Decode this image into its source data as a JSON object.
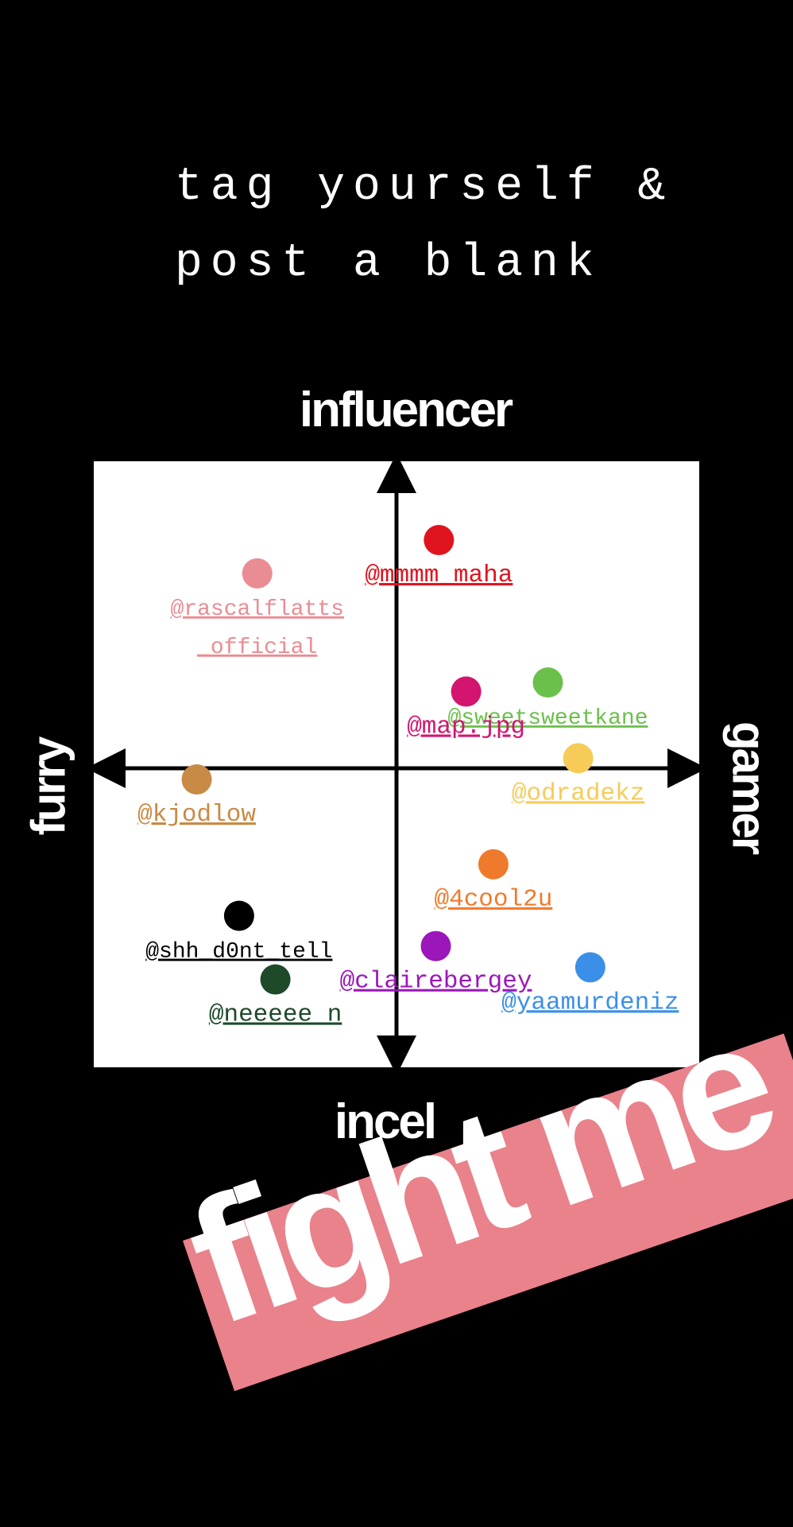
{
  "header": {
    "line1": "tag yourself &",
    "line2": "post a blank"
  },
  "axes": {
    "top": "influencer",
    "bottom": "incel",
    "left": "furry",
    "right": "gamer"
  },
  "sticker": {
    "text": "fight me",
    "color": "#e9828b"
  },
  "chart_data": {
    "type": "scatter",
    "xlim": [
      -1,
      1
    ],
    "ylim": [
      -1,
      1
    ],
    "grid": false,
    "points": [
      {
        "label": "@mmmm_maha",
        "x": 0.14,
        "y": 0.74,
        "color": "#e0141f"
      },
      {
        "label": "@rascalflatts _official",
        "x": -0.46,
        "y": 0.63,
        "color": "#ea8c93"
      },
      {
        "label": "@sweetsweetkane",
        "x": 0.5,
        "y": 0.27,
        "color": "#6bc04b"
      },
      {
        "label": "@map.jpg",
        "x": 0.23,
        "y": 0.24,
        "color": "#d31570"
      },
      {
        "label": "@odradekz",
        "x": 0.6,
        "y": 0.02,
        "color": "#f6cb58"
      },
      {
        "label": "@kjodlow",
        "x": -0.66,
        "y": -0.05,
        "color": "#c88a45"
      },
      {
        "label": "@4cool2u",
        "x": 0.32,
        "y": -0.33,
        "color": "#f07a2c"
      },
      {
        "label": "@shh_d0nt_tell",
        "x": -0.52,
        "y": -0.5,
        "color": "#000000"
      },
      {
        "label": "@clairebergey",
        "x": 0.13,
        "y": -0.6,
        "color": "#9b17b9"
      },
      {
        "label": "@neeeee_n",
        "x": -0.4,
        "y": -0.71,
        "color": "#1e4a2a"
      },
      {
        "label": "@yaamurdeniz",
        "x": 0.64,
        "y": -0.67,
        "color": "#3b8fe8"
      }
    ]
  }
}
